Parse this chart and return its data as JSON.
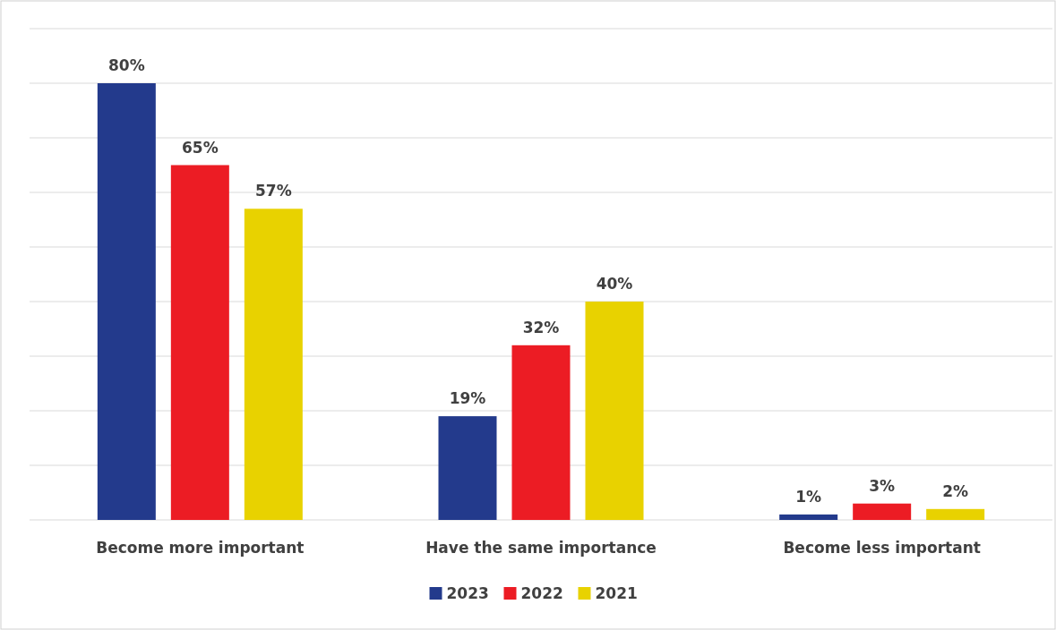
{
  "chart_data": {
    "type": "bar",
    "categories": [
      "Become more important",
      "Have the same importance",
      "Become less important"
    ],
    "series": [
      {
        "name": "2023",
        "color": "#233a8c",
        "values": [
          80,
          19,
          1
        ],
        "value_labels": [
          "80%",
          "19%",
          "1%"
        ]
      },
      {
        "name": "2022",
        "color": "#ec1c24",
        "values": [
          65,
          32,
          3
        ],
        "value_labels": [
          "65%",
          "32%",
          "3%"
        ]
      },
      {
        "name": "2021",
        "color": "#e8d200",
        "values": [
          57,
          40,
          2
        ],
        "value_labels": [
          "57%",
          "40%",
          "2%"
        ]
      }
    ],
    "ylim": [
      0,
      90
    ],
    "yticks": [
      {
        "value": 0,
        "label": null
      },
      {
        "value": 10,
        "label": null
      },
      {
        "value": 20,
        "label": null
      },
      {
        "value": 30,
        "label": null
      },
      {
        "value": 40,
        "label": null
      },
      {
        "value": 50,
        "label": null
      },
      {
        "value": 60,
        "label": null
      },
      {
        "value": 70,
        "label": null
      },
      {
        "value": 80,
        "label": null
      },
      {
        "value": 90,
        "label": null
      }
    ],
    "tick_labels": "x",
    "grid": "y",
    "legend": "bottom"
  }
}
